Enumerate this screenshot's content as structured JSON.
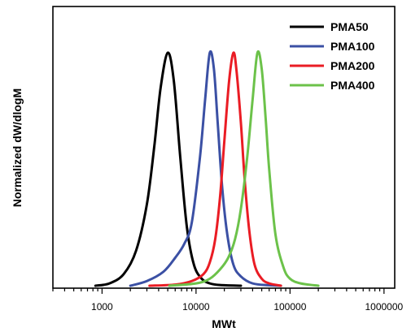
{
  "chart_data": {
    "type": "line",
    "title": "",
    "xlabel": "MWt",
    "ylabel": "Normalized dW/dlogM",
    "x_scale": "log",
    "xlim": [
      300,
      1300000
    ],
    "ylim": [
      0,
      1.0
    ],
    "x_ticks": [
      1000,
      10000,
      100000,
      1000000
    ],
    "x_tick_labels": [
      "1000",
      "10000",
      "100000",
      "1000000"
    ],
    "y_ticks_shown": false,
    "grid": false,
    "legend_position": "top-right",
    "series": [
      {
        "name": "PMA50",
        "color": "#000000",
        "x": [
          850,
          1200,
          1700,
          2300,
          3000,
          3600,
          4200,
          5000,
          5800,
          6800,
          8000,
          9500,
          11500,
          14000,
          18000,
          30000
        ],
        "y": [
          0.0,
          0.01,
          0.05,
          0.15,
          0.35,
          0.6,
          0.85,
          1.0,
          0.88,
          0.55,
          0.25,
          0.09,
          0.03,
          0.01,
          0.003,
          0.0
        ]
      },
      {
        "name": "PMA100",
        "color": "#3b50a4",
        "x": [
          2000,
          3000,
          4500,
          6000,
          7500,
          9000,
          11000,
          12500,
          14000,
          15500,
          17000,
          19000,
          21500,
          25000,
          30000,
          40000,
          60000,
          80000
        ],
        "y": [
          0.0,
          0.02,
          0.06,
          0.12,
          0.18,
          0.27,
          0.55,
          0.8,
          1.0,
          0.93,
          0.7,
          0.42,
          0.22,
          0.09,
          0.04,
          0.01,
          0.002,
          0.0
        ]
      },
      {
        "name": "PMA200",
        "color": "#ea1c24",
        "x": [
          3200,
          6000,
          9000,
          12000,
          14000,
          16000,
          18000,
          20000,
          22500,
          25000,
          27000,
          30000,
          33000,
          37000,
          42000,
          50000,
          60000,
          80000
        ],
        "y": [
          0.0,
          0.005,
          0.02,
          0.05,
          0.1,
          0.2,
          0.38,
          0.62,
          0.88,
          1.0,
          0.92,
          0.7,
          0.45,
          0.23,
          0.09,
          0.03,
          0.01,
          0.0
        ]
      },
      {
        "name": "PMA400",
        "color": "#6cc24a",
        "x": [
          5200,
          10000,
          14000,
          18000,
          22000,
          26000,
          30000,
          35000,
          40000,
          45000,
          50000,
          55000,
          60000,
          70000,
          85000,
          100000,
          130000,
          200000
        ],
        "y": [
          0.0,
          0.01,
          0.03,
          0.07,
          0.12,
          0.2,
          0.33,
          0.55,
          0.8,
          1.0,
          0.93,
          0.72,
          0.5,
          0.22,
          0.08,
          0.03,
          0.01,
          0.0
        ]
      }
    ]
  }
}
